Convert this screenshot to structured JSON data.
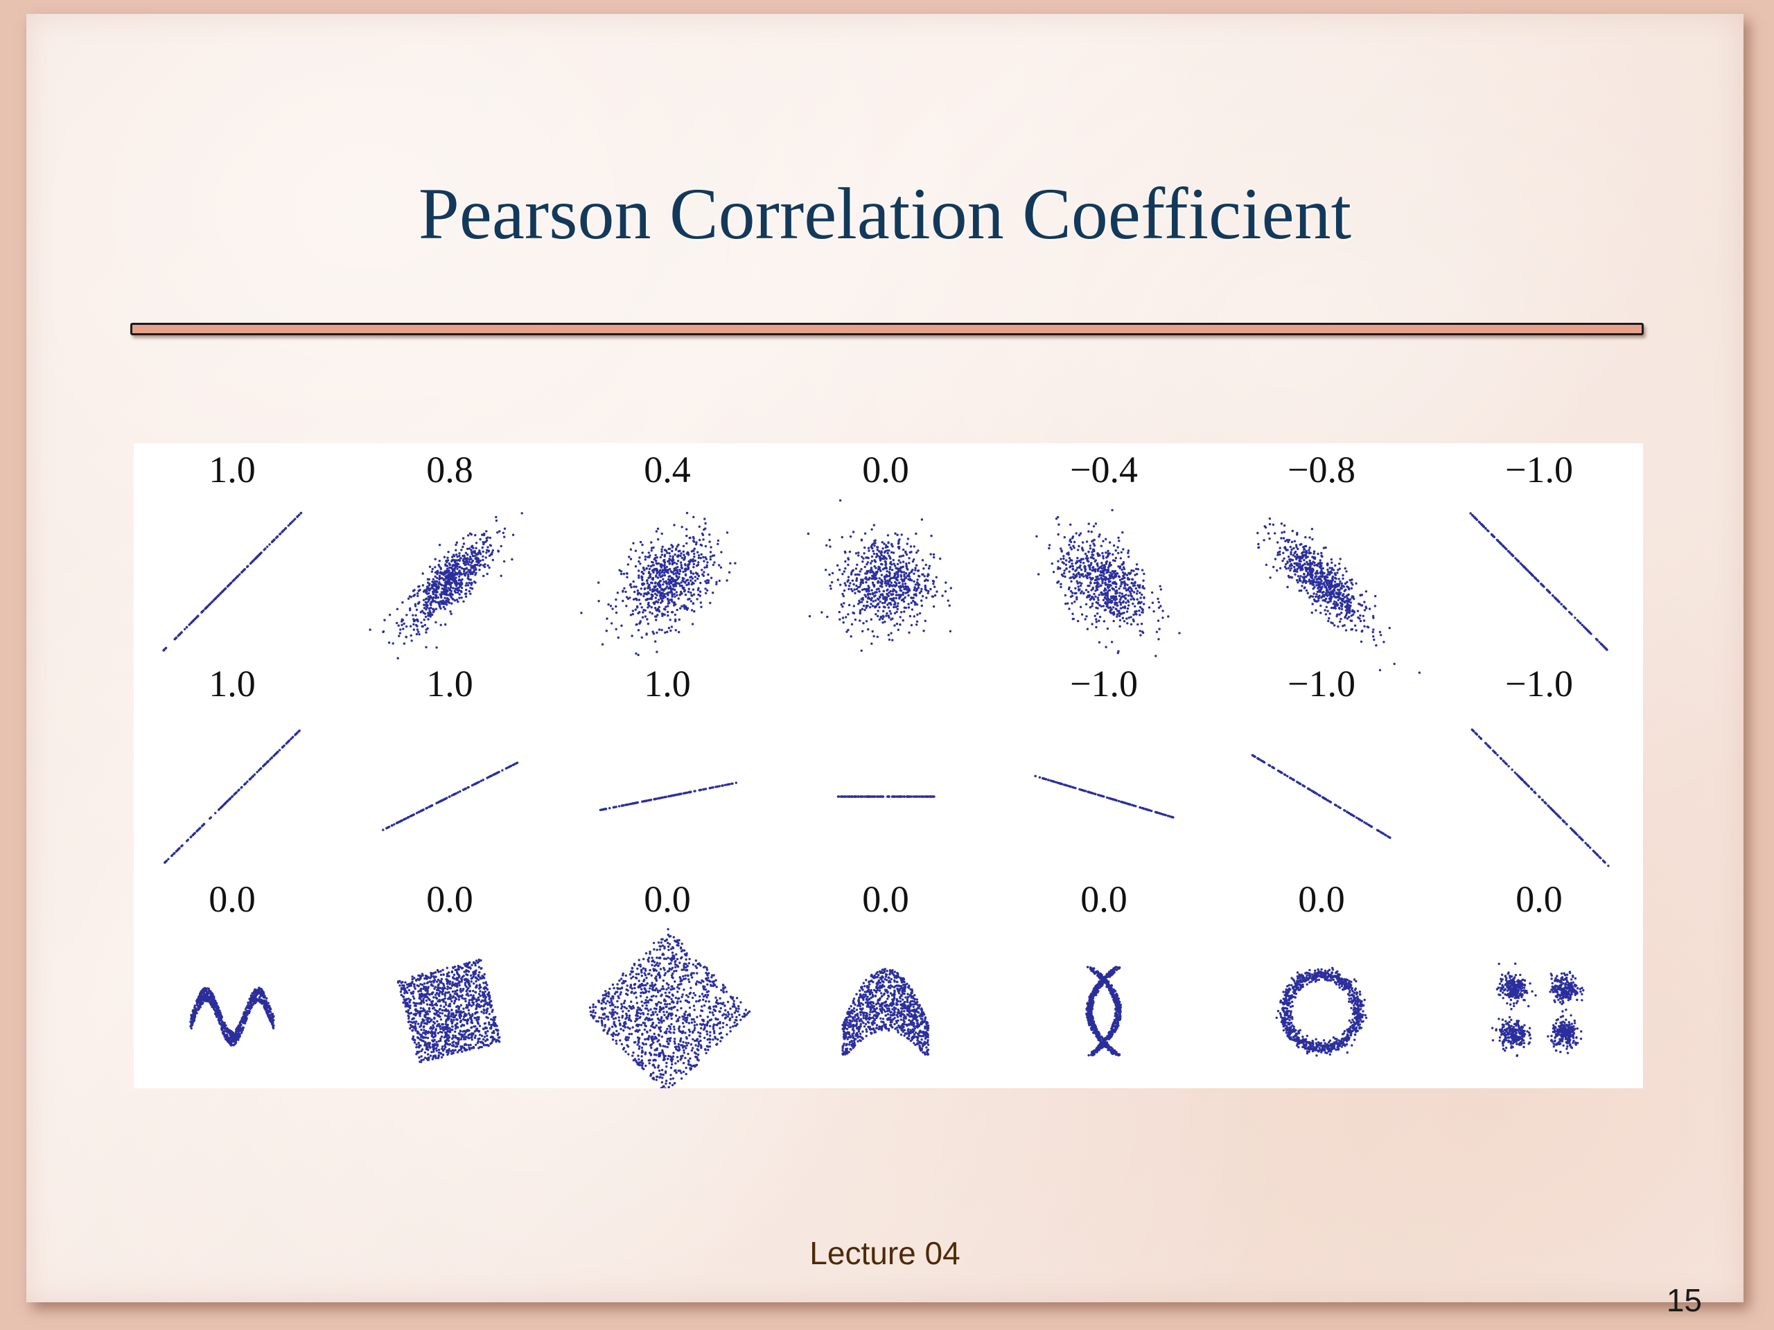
{
  "slide": {
    "title": "Pearson Correlation Coefficient",
    "footer": "Lecture 04",
    "page_number": "15"
  },
  "colors": {
    "title": "#13395a",
    "rule_fill": "#e8a18a",
    "points": "#2b2f9c",
    "footer": "#4e2a08"
  },
  "figure": {
    "rows": [
      {
        "labels": [
          "1.0",
          "0.8",
          "0.4",
          "0.0",
          "−0.4",
          "−0.8",
          "−1.0"
        ],
        "patterns": [
          "corr-1.0",
          "corr-0.8",
          "corr-0.4",
          "corr-0.0",
          "corr--0.4",
          "corr--0.8",
          "corr--1.0"
        ]
      },
      {
        "labels": [
          "1.0",
          "1.0",
          "1.0",
          "",
          "−1.0",
          "−1.0",
          "−1.0"
        ],
        "patterns": [
          "line-steep-up",
          "line-up",
          "line-shallow-up",
          "line-flat",
          "line-shallow-down",
          "line-down",
          "line-steep-down"
        ]
      },
      {
        "labels": [
          "0.0",
          "0.0",
          "0.0",
          "0.0",
          "0.0",
          "0.0",
          "0.0"
        ],
        "patterns": [
          "wave",
          "rotated-square",
          "diamond",
          "parabola",
          "crossing-curves",
          "ring",
          "four-clusters"
        ]
      }
    ]
  }
}
